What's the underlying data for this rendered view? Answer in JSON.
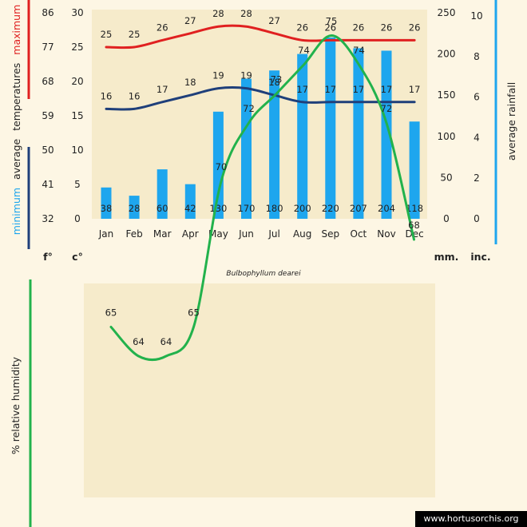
{
  "title": "Bulbophyllum dearei",
  "watermark": "www.hortusorchis.org",
  "chart_data": [
    {
      "type": "bar",
      "categories": [
        "Jan",
        "Feb",
        "Mar",
        "Apr",
        "May",
        "Jun",
        "Jul",
        "Aug",
        "Sep",
        "Oct",
        "Nov",
        "Dec"
      ],
      "series": [
        {
          "name": "maximum",
          "kind": "line",
          "color": "#e02020",
          "values": [
            25,
            25,
            26,
            27,
            28,
            28,
            27,
            26,
            26,
            26,
            26,
            26
          ]
        },
        {
          "name": "minimum",
          "kind": "line",
          "color": "#1f3f7a",
          "values": [
            16,
            16,
            17,
            18,
            19,
            19,
            18,
            17,
            17,
            17,
            17,
            17
          ]
        },
        {
          "name": "average rainfall",
          "kind": "bar",
          "color": "#1ea6ee",
          "unit": "mm.",
          "values": [
            38,
            28,
            60,
            42,
            130,
            170,
            180,
            200,
            220,
            207,
            204,
            118
          ]
        }
      ],
      "ylabel_left_parts": {
        "minimum": "minimum",
        "average": "average",
        "temperatures": "temperatures",
        "maximum": "maximum"
      },
      "ylabel_right": "average rainfall",
      "y_celsius_ticks": [
        "30",
        "25",
        "20",
        "15",
        "10",
        "5",
        "0"
      ],
      "y_fahrenheit_ticks": [
        "86",
        "77",
        "68",
        "59",
        "50",
        "41",
        "32"
      ],
      "y_mm_ticks": [
        "250",
        "200",
        "150",
        "100",
        "50",
        "0"
      ],
      "y_inch_ticks": [
        "10",
        "8",
        "6",
        "4",
        "2",
        "0"
      ],
      "ylim_celsius": [
        0,
        30
      ],
      "ylim_mm": [
        0,
        250
      ],
      "unit_labels": {
        "f": "f°",
        "c": "c°",
        "mm": "mm.",
        "inc": "inc."
      },
      "colors": {
        "max_axis": "#e02020",
        "min_axis": "#1f3f7a",
        "rain_axis": "#1ea6ee",
        "panel": "#f6ebcb",
        "page": "#fdf6e4"
      }
    },
    {
      "type": "line",
      "categories": [
        "Jan",
        "Feb",
        "Mar",
        "Apr",
        "May",
        "Jun",
        "Jul",
        "Aug",
        "Sep",
        "Oct",
        "Nov",
        "Dec"
      ],
      "series": [
        {
          "name": "% relative humidity",
          "color": "#22b24c",
          "values": [
            65,
            64,
            64,
            65,
            70,
            72,
            73,
            74,
            75,
            74,
            72,
            68
          ]
        }
      ],
      "ylabel": "% relative humidity",
      "ylim": [
        58,
        80
      ],
      "colors": {
        "axis": "#22b24c",
        "panel": "#f6ebcb"
      }
    }
  ]
}
